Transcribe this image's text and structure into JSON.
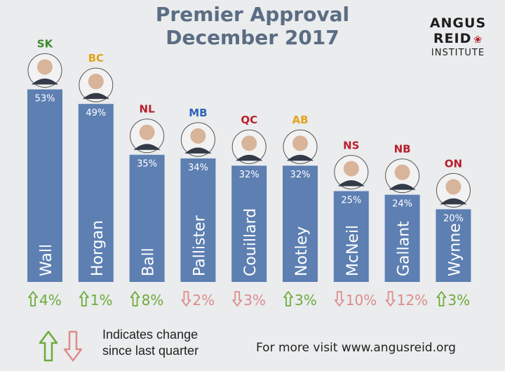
{
  "header": {
    "title_line1": "Premier Approval",
    "title_line2": "December 2017"
  },
  "brand": {
    "line1": "ANGUS",
    "line2": "REID",
    "line3": "INSTITUTE",
    "leaf_icon": "maple-leaf-icon",
    "leaf_color": "#b72126"
  },
  "legend": {
    "up_icon": "up-arrow-icon",
    "down_icon": "down-arrow-icon",
    "text_line1": "Indicates change",
    "text_line2": "since last quarter"
  },
  "footer": {
    "more_text": "For more visit www.angusreid.org"
  },
  "colors": {
    "bar": "#5d7fb2",
    "title": "#5b6d84",
    "up": "#6dab3a",
    "down": "#de8b8b",
    "background": "#eaeced"
  },
  "chart_data": {
    "type": "bar",
    "ylim": [
      0,
      100
    ],
    "categories": [
      "Wall",
      "Horgan",
      "Ball",
      "Pallister",
      "Couillard",
      "Notley",
      "McNeil",
      "Gallant",
      "Wynne"
    ],
    "provinces": [
      "SK",
      "BC",
      "NL",
      "MB",
      "QC",
      "AB",
      "NS",
      "NB",
      "ON"
    ],
    "province_colors": [
      "#3d8b2c",
      "#e3a21c",
      "#b81f2c",
      "#2e63b8",
      "#b81f2c",
      "#e3a21c",
      "#b81f2c",
      "#b81f2c",
      "#b81f2c"
    ],
    "values": [
      53,
      49,
      35,
      34,
      32,
      32,
      25,
      24,
      20
    ],
    "value_labels": [
      "53%",
      "49%",
      "35%",
      "34%",
      "32%",
      "32%",
      "25%",
      "24%",
      "20%"
    ],
    "change_values": [
      4,
      1,
      8,
      -2,
      -3,
      3,
      -10,
      -12,
      3
    ],
    "change_labels": [
      "4%",
      "1%",
      "8%",
      "2%",
      "3%",
      "3%",
      "10%",
      "12%",
      "3%"
    ]
  }
}
